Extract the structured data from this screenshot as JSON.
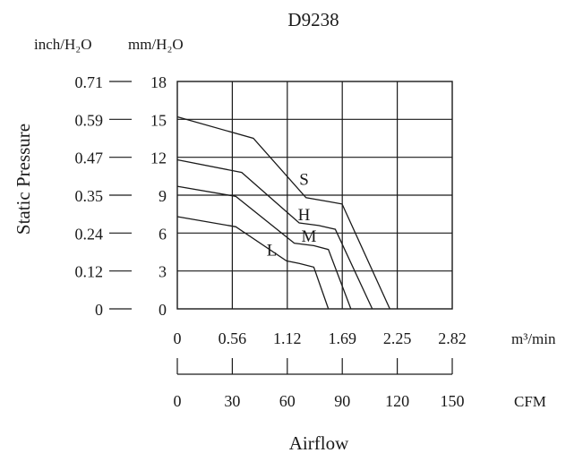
{
  "chart_data": {
    "type": "line",
    "title": "D9238",
    "ylabel": "Static Pressure",
    "xlabel": "Airflow",
    "y_unit_left": "inch/H₂O",
    "y_unit_right": "mm/H₂O",
    "y_ticks_mm": [
      "18",
      "15",
      "12",
      "9",
      "6",
      "3",
      "0"
    ],
    "y_ticks_inch": [
      "0.71",
      "0.59",
      "0.47",
      "0.35",
      "0.24",
      "0.12",
      "0"
    ],
    "x_ticks_m3": [
      "0",
      "0.56",
      "1.12",
      "1.69",
      "2.25",
      "2.82"
    ],
    "x_unit_m3": "m³/min",
    "x_ticks_cfm": [
      "0",
      "30",
      "60",
      "90",
      "120",
      "150"
    ],
    "x_unit_cfm": "CFM",
    "xlim_m3": [
      0,
      2.82
    ],
    "ylim_mm": [
      0,
      18
    ],
    "grid": true,
    "series": [
      {
        "name": "S",
        "points": [
          [
            0,
            15.2
          ],
          [
            0.78,
            13.5
          ],
          [
            1.32,
            8.8
          ],
          [
            1.55,
            8.5
          ],
          [
            1.69,
            8.3
          ],
          [
            2.18,
            0
          ]
        ]
      },
      {
        "name": "H",
        "points": [
          [
            0,
            11.8
          ],
          [
            0.66,
            10.8
          ],
          [
            1.25,
            6.8
          ],
          [
            1.45,
            6.6
          ],
          [
            1.62,
            6.3
          ],
          [
            2.0,
            0
          ]
        ]
      },
      {
        "name": "M",
        "points": [
          [
            0,
            9.7
          ],
          [
            0.6,
            8.9
          ],
          [
            1.2,
            5.2
          ],
          [
            1.4,
            5.0
          ],
          [
            1.55,
            4.7
          ],
          [
            1.78,
            0
          ]
        ]
      },
      {
        "name": "L",
        "points": [
          [
            0,
            7.3
          ],
          [
            0.6,
            6.5
          ],
          [
            1.12,
            3.8
          ],
          [
            1.25,
            3.6
          ],
          [
            1.4,
            3.3
          ],
          [
            1.55,
            0
          ]
        ]
      }
    ],
    "curve_labels": [
      {
        "series": "S",
        "x": 1.3,
        "y": 9.8
      },
      {
        "series": "H",
        "x": 1.3,
        "y": 7.0
      },
      {
        "series": "M",
        "x": 1.35,
        "y": 5.3
      },
      {
        "series": "L",
        "x": 0.97,
        "y": 4.2
      }
    ]
  }
}
